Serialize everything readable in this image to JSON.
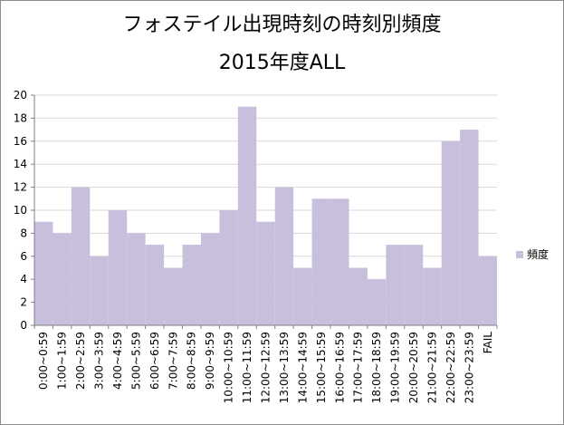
{
  "chart_data": {
    "type": "bar",
    "title": "フォステイル出現時刻の時刻別頻度",
    "subtitle": "2015年度ALL",
    "categories": [
      "0:00~0:59",
      "1:00~1:59",
      "2:00~2:59",
      "3:00~3:59",
      "4:00~4:59",
      "5:00~5:59",
      "6:00~6:59",
      "7:00~7:59",
      "8:00~8:59",
      "9:00~9:59",
      "10:00~10:59",
      "11:00~11:59",
      "12:00~12:59",
      "13:00~13:59",
      "14:00~14:59",
      "15:00~15:59",
      "16:00~16:59",
      "17:00~17:59",
      "18:00~18:59",
      "19:00~19:59",
      "20:00~20:59",
      "21:00~21:59",
      "22:00~22:59",
      "23:00~23:59",
      "FAIL"
    ],
    "series": [
      {
        "name": "頻度",
        "values": [
          9,
          8,
          12,
          6,
          10,
          8,
          7,
          5,
          7,
          8,
          10,
          19,
          9,
          12,
          5,
          11,
          11,
          5,
          4,
          7,
          7,
          5,
          16,
          17,
          6
        ]
      }
    ],
    "ylim": [
      0,
      20
    ],
    "yticks": [
      0,
      2,
      4,
      6,
      8,
      10,
      12,
      14,
      16,
      18,
      20
    ],
    "grid": true,
    "legend_position": "right",
    "bar_color": "#c8bfdc",
    "grid_color": "#d9d9d9",
    "axis_color": "#808080"
  }
}
